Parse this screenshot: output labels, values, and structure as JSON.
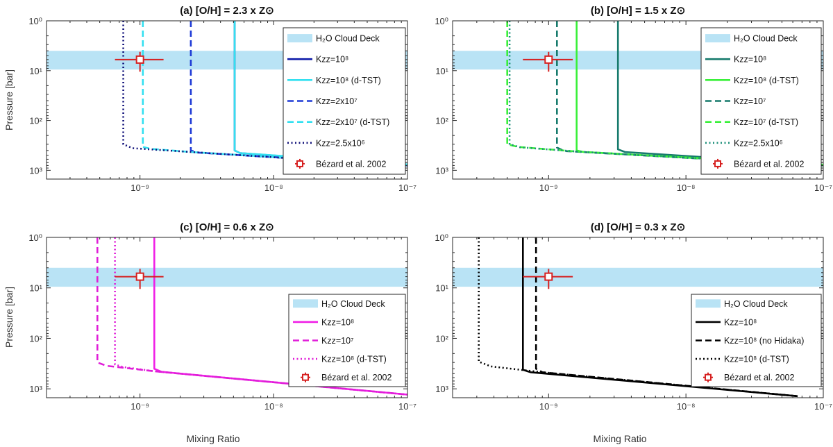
{
  "figure": {
    "ylabel": "Pressure [bar]",
    "xlabel": "Mixing Ratio",
    "colors": {
      "cloud": "#b9e3f5",
      "observation": "#d62020",
      "axis": "#262626"
    }
  },
  "chart_data": [
    {
      "type": "line",
      "title": "(a) [O/H] = 2.3 x Z⊙",
      "xlabel": "Mixing Ratio",
      "ylabel": "Pressure [bar]",
      "xscale": "log",
      "yscale": "log",
      "xlim": [
        2e-10,
        1e-07
      ],
      "ylim": [
        1,
        1500
      ],
      "y_inverted": true,
      "xticks": [
        "10^-9",
        "10^-8",
        "10^-7"
      ],
      "yticks": [
        "10^0",
        "10^1",
        "10^2",
        "10^3"
      ],
      "cloud_deck": {
        "label": "H2O Cloud Deck",
        "p_top": 4,
        "p_bottom": 9.5
      },
      "observation": {
        "label": "Bézard et al. 2002",
        "x": 1e-09,
        "x_err": [
          6.5e-10,
          1.5e-09
        ],
        "y": 6,
        "y_err": [
          4.2,
          10.5
        ]
      },
      "series": [
        {
          "label": "Kzz=10^8",
          "color": "#0d1aa8",
          "dash": "solid",
          "points": [
            [
              5.1e-09,
              1
            ],
            [
              5.1e-09,
              400
            ],
            [
              5.6e-09,
              450
            ],
            [
              1e-07,
              800
            ]
          ]
        },
        {
          "label": "Kzz=10^8 (d-TST)",
          "color": "#33e0f0",
          "dash": "solid",
          "points": [
            [
              5.1e-09,
              1
            ],
            [
              5.1e-09,
              400
            ],
            [
              5.6e-09,
              450
            ],
            [
              1e-07,
              760
            ]
          ]
        },
        {
          "label": "Kzz=2x10^7",
          "color": "#1e3ad6",
          "dash": "dash",
          "points": [
            [
              2.4e-09,
              1
            ],
            [
              2.4e-09,
              400
            ],
            [
              2.7e-09,
              440
            ],
            [
              1e-07,
              800
            ]
          ]
        },
        {
          "label": "Kzz=2x10^7 (d-TST)",
          "color": "#33e0f0",
          "dash": "dash",
          "points": [
            [
              1.05e-09,
              1
            ],
            [
              1.05e-09,
              340
            ],
            [
              1.2e-09,
              370
            ],
            [
              2.4e-09,
              430
            ],
            [
              1e-07,
              790
            ]
          ]
        },
        {
          "label": "Kzz=2.5x10^6",
          "color": "#11117a",
          "dash": "dot",
          "points": [
            [
              7.5e-10,
              1
            ],
            [
              7.5e-10,
              300
            ],
            [
              8.8e-10,
              360
            ],
            [
              2.4e-09,
              430
            ],
            [
              1e-07,
              810
            ]
          ]
        }
      ],
      "legend": [
        {
          "kind": "cloud",
          "text": "H₂O Cloud Deck"
        },
        {
          "kind": "line",
          "color": "#0d1aa8",
          "dash": "solid",
          "text": "Kzz=10⁸"
        },
        {
          "kind": "line",
          "color": "#33e0f0",
          "dash": "solid",
          "text": "Kzz=10⁸ (d-TST)"
        },
        {
          "kind": "line",
          "color": "#1e3ad6",
          "dash": "dash",
          "text": "Kzz=2x10⁷"
        },
        {
          "kind": "line",
          "color": "#33e0f0",
          "dash": "dash",
          "text": "Kzz=2x10⁷ (d-TST)"
        },
        {
          "kind": "line",
          "color": "#11117a",
          "dash": "dot",
          "text": "Kzz=2.5x10⁶"
        },
        {
          "kind": "obs",
          "text": "Bézard et al. 2002"
        }
      ]
    },
    {
      "type": "line",
      "title": "(b) [O/H] = 1.5 x Z⊙",
      "xlabel": "Mixing Ratio",
      "ylabel": "Pressure [bar]",
      "xscale": "log",
      "yscale": "log",
      "xlim": [
        2e-10,
        1e-07
      ],
      "ylim": [
        1,
        1500
      ],
      "y_inverted": true,
      "xticks": [
        "10^-9",
        "10^-8",
        "10^-7"
      ],
      "yticks": [
        "10^0",
        "10^1",
        "10^2",
        "10^3"
      ],
      "cloud_deck": {
        "label": "H2O Cloud Deck",
        "p_top": 4,
        "p_bottom": 9.5
      },
      "observation": {
        "label": "Bézard et al. 2002",
        "x": 1e-09,
        "x_err": [
          6.5e-10,
          1.5e-09
        ],
        "y": 6,
        "y_err": [
          4.2,
          10.5
        ]
      },
      "series": [
        {
          "label": "Kzz=10^8",
          "color": "#167a6c",
          "dash": "solid",
          "points": [
            [
              3.2e-09,
              1
            ],
            [
              3.2e-09,
              380
            ],
            [
              3.6e-09,
              430
            ],
            [
              1e-07,
              780
            ]
          ]
        },
        {
          "label": "Kzz=10^8 (d-TST)",
          "color": "#3af03a",
          "dash": "solid",
          "points": [
            [
              1.6e-09,
              1
            ],
            [
              1.6e-09,
              400
            ],
            [
              1.8e-09,
              430
            ],
            [
              1e-07,
              770
            ]
          ]
        },
        {
          "label": "Kzz=10^7",
          "color": "#167a6c",
          "dash": "dash",
          "points": [
            [
              1.15e-09,
              1
            ],
            [
              1.15e-09,
              350
            ],
            [
              1.3e-09,
              410
            ],
            [
              1e-07,
              800
            ]
          ]
        },
        {
          "label": "Kzz=10^7 (d-TST)",
          "color": "#3af03a",
          "dash": "dash",
          "points": [
            [
              5e-10,
              1
            ],
            [
              5e-10,
              300
            ],
            [
              6e-10,
              340
            ],
            [
              1.6e-09,
              420
            ],
            [
              1e-07,
              790
            ]
          ]
        },
        {
          "label": "Kzz=2.5x10^6",
          "color": "#1d8f7a",
          "dash": "dot",
          "points": [
            [
              5.2e-10,
              1
            ],
            [
              5.2e-10,
              300
            ],
            [
              6.2e-10,
              345
            ],
            [
              1.6e-09,
              420
            ],
            [
              1e-07,
              800
            ]
          ]
        }
      ],
      "legend": [
        {
          "kind": "cloud",
          "text": "H₂O Cloud Deck"
        },
        {
          "kind": "line",
          "color": "#167a6c",
          "dash": "solid",
          "text": "Kzz=10⁸"
        },
        {
          "kind": "line",
          "color": "#3af03a",
          "dash": "solid",
          "text": "Kzz=10⁸ (d-TST)"
        },
        {
          "kind": "line",
          "color": "#167a6c",
          "dash": "dash",
          "text": "Kzz=10⁷"
        },
        {
          "kind": "line",
          "color": "#3af03a",
          "dash": "dash",
          "text": "Kzz=10⁷ (d-TST)"
        },
        {
          "kind": "line",
          "color": "#1d8f7a",
          "dash": "dot",
          "text": "Kzz=2.5x10⁶"
        },
        {
          "kind": "obs",
          "text": "Bézard et al. 2002"
        }
      ]
    },
    {
      "type": "line",
      "title": "(c) [O/H] = 0.6 x Z⊙",
      "xlabel": "Mixing Ratio",
      "ylabel": "Pressure [bar]",
      "xscale": "log",
      "yscale": "log",
      "xlim": [
        2e-10,
        1e-07
      ],
      "ylim": [
        1,
        1500
      ],
      "y_inverted": true,
      "xticks": [
        "10^-9",
        "10^-8",
        "10^-7"
      ],
      "yticks": [
        "10^0",
        "10^1",
        "10^2",
        "10^3"
      ],
      "cloud_deck": {
        "label": "H2O Cloud Deck",
        "p_top": 4,
        "p_bottom": 9.5
      },
      "observation": {
        "label": "Bézard et al. 2002",
        "x": 1e-09,
        "x_err": [
          6.5e-10,
          1.5e-09
        ],
        "y": 6,
        "y_err": [
          4.2,
          10.5
        ]
      },
      "series": [
        {
          "label": "Kzz=10^8",
          "color": "#f01ee6",
          "dash": "solid",
          "points": [
            [
              1.28e-09,
              1
            ],
            [
              1.28e-09,
              400
            ],
            [
              1.45e-09,
              460
            ],
            [
              1e-07,
              1300
            ]
          ]
        },
        {
          "label": "Kzz=10^7",
          "color": "#e01ed8",
          "dash": "dash",
          "points": [
            [
              4.8e-10,
              1
            ],
            [
              4.8e-10,
              300
            ],
            [
              5.6e-10,
              350
            ],
            [
              1.3e-09,
              450
            ],
            [
              1e-07,
              1300
            ]
          ]
        },
        {
          "label": "Kzz=10^8 (d-TST)",
          "color": "#e01ed8",
          "dash": "dot",
          "points": [
            [
              6.5e-10,
              1
            ],
            [
              6.5e-10,
              330
            ],
            [
              7.5e-10,
              370
            ],
            [
              1.3e-09,
              450
            ],
            [
              1e-07,
              1300
            ]
          ]
        }
      ],
      "legend": [
        {
          "kind": "cloud",
          "text": "H₂O Cloud Deck"
        },
        {
          "kind": "line",
          "color": "#f01ee6",
          "dash": "solid",
          "text": "Kzz=10⁸"
        },
        {
          "kind": "line",
          "color": "#e01ed8",
          "dash": "dash",
          "text": "Kzz=10⁷"
        },
        {
          "kind": "line",
          "color": "#e01ed8",
          "dash": "dot",
          "text": "Kzz=10⁸ (d-TST)"
        },
        {
          "kind": "obs",
          "text": "Bézard et al. 2002"
        }
      ]
    },
    {
      "type": "line",
      "title": "(d) [O/H] = 0.3 x Z⊙",
      "xlabel": "Mixing Ratio",
      "ylabel": "Pressure [bar]",
      "xscale": "log",
      "yscale": "log",
      "xlim": [
        2e-10,
        1e-07
      ],
      "ylim": [
        1,
        1500
      ],
      "y_inverted": true,
      "xticks": [
        "10^-9",
        "10^-8",
        "10^-7"
      ],
      "yticks": [
        "10^0",
        "10^1",
        "10^2",
        "10^3"
      ],
      "cloud_deck": {
        "label": "H2O Cloud Deck",
        "p_top": 4,
        "p_bottom": 9.5
      },
      "observation": {
        "label": "Bézard et al. 2002",
        "x": 1e-09,
        "x_err": [
          6.5e-10,
          1.5e-09
        ],
        "y": 6,
        "y_err": [
          4.2,
          10.5
        ]
      },
      "series": [
        {
          "label": "Kzz=10^8",
          "color": "#000000",
          "dash": "solid",
          "points": [
            [
              6.5e-10,
              1
            ],
            [
              6.5e-10,
              420
            ],
            [
              7.4e-10,
              470
            ],
            [
              6.5e-08,
              1400
            ]
          ]
        },
        {
          "label": "Kzz=10^8 (no Hidaka)",
          "color": "#000000",
          "dash": "dash",
          "points": [
            [
              8.1e-10,
              1
            ],
            [
              8.1e-10,
              400
            ],
            [
              9e-10,
              470
            ],
            [
              6.5e-08,
              1400
            ]
          ]
        },
        {
          "label": "Kzz=10^8 (d-TST)",
          "color": "#000000",
          "dash": "dot",
          "points": [
            [
              3.1e-10,
              1
            ],
            [
              3.1e-10,
              290
            ],
            [
              3.8e-10,
              360
            ],
            [
              9e-10,
              470
            ],
            [
              6.5e-08,
              1400
            ]
          ]
        }
      ],
      "legend": [
        {
          "kind": "cloud",
          "text": "H₂O Cloud Deck"
        },
        {
          "kind": "line",
          "color": "#000000",
          "dash": "solid",
          "text": "Kzz=10⁸"
        },
        {
          "kind": "line",
          "color": "#000000",
          "dash": "dash",
          "text": "Kzz=10⁸ (no Hidaka)"
        },
        {
          "kind": "line",
          "color": "#000000",
          "dash": "dot",
          "text": "Kzz=10⁸ (d-TST)"
        },
        {
          "kind": "obs",
          "text": "Bézard et al. 2002"
        }
      ]
    }
  ]
}
